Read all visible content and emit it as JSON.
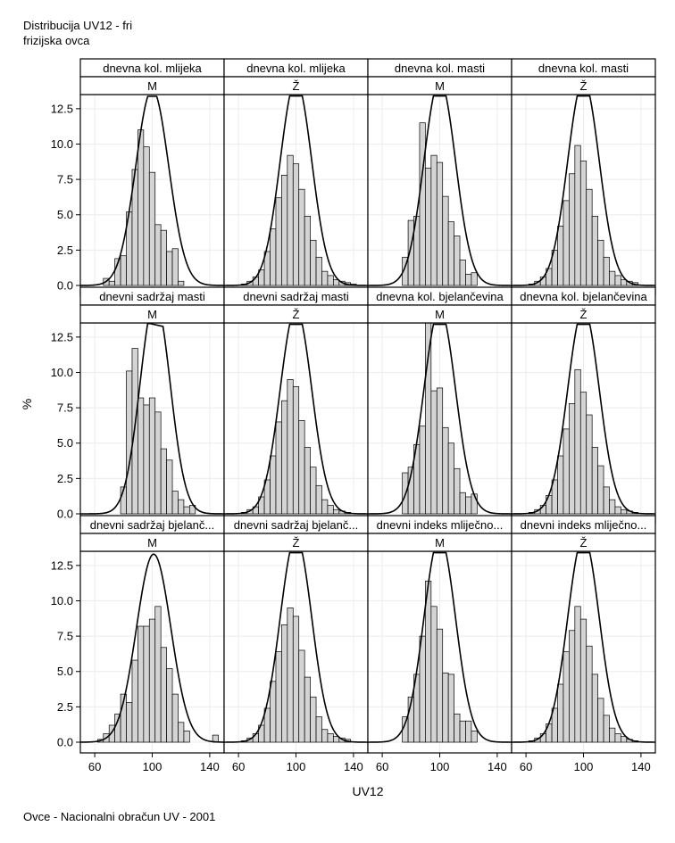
{
  "title": "Distribucija UV12 - fri",
  "subtitle": "frizijska ovca",
  "footer": "Ovce - Nacionalni obračun UV - 2001",
  "chart_data": {
    "type": "bar",
    "subtype": "histogram with fitted normal density curve, faceted 3x4",
    "xlabel": "UV12",
    "ylabel": "%",
    "xlim": [
      50,
      150
    ],
    "ylim": [
      0,
      13.5
    ],
    "xticks": [
      60,
      100,
      140
    ],
    "yticks": [
      0.0,
      2.5,
      5.0,
      7.5,
      10.0,
      12.5
    ],
    "ytick_labels": [
      "0.0",
      "2.5",
      "5.0",
      "7.5",
      "10.0",
      "12.5"
    ],
    "grid": true,
    "bar_fill": "#d4d4d4",
    "bar_edge": "#000000",
    "bin_width": 4,
    "panels": [
      {
        "trait": "dnevna kol. mlijeka",
        "sex": "M",
        "curve": {
          "mean": 100,
          "sd": 11.5
        },
        "bins": [
          {
            "x": 68,
            "y": 0.5
          },
          {
            "x": 72,
            "y": 0.3
          },
          {
            "x": 76,
            "y": 1.9
          },
          {
            "x": 80,
            "y": 2.1
          },
          {
            "x": 84,
            "y": 5.2
          },
          {
            "x": 88,
            "y": 8.2
          },
          {
            "x": 92,
            "y": 11.0
          },
          {
            "x": 96,
            "y": 9.8
          },
          {
            "x": 100,
            "y": 8.0
          },
          {
            "x": 104,
            "y": 4.3
          },
          {
            "x": 108,
            "y": 3.9
          },
          {
            "x": 112,
            "y": 2.4
          },
          {
            "x": 116,
            "y": 2.6
          },
          {
            "x": 120,
            "y": 0.3
          }
        ]
      },
      {
        "trait": "dnevna kol. mlijeka",
        "sex": "Ž",
        "curve": {
          "mean": 100,
          "sd": 11
        },
        "bins": [
          {
            "x": 64,
            "y": 0.1
          },
          {
            "x": 68,
            "y": 0.3
          },
          {
            "x": 72,
            "y": 0.6
          },
          {
            "x": 76,
            "y": 1.1
          },
          {
            "x": 80,
            "y": 2.4
          },
          {
            "x": 84,
            "y": 4.0
          },
          {
            "x": 88,
            "y": 6.2
          },
          {
            "x": 92,
            "y": 7.8
          },
          {
            "x": 96,
            "y": 9.2
          },
          {
            "x": 100,
            "y": 8.6
          },
          {
            "x": 104,
            "y": 6.8
          },
          {
            "x": 108,
            "y": 4.9
          },
          {
            "x": 112,
            "y": 3.2
          },
          {
            "x": 116,
            "y": 2.0
          },
          {
            "x": 120,
            "y": 1.0
          },
          {
            "x": 124,
            "y": 0.7
          },
          {
            "x": 128,
            "y": 0.4
          },
          {
            "x": 132,
            "y": 0.3
          },
          {
            "x": 136,
            "y": 0.2
          },
          {
            "x": 140,
            "y": 0.1
          }
        ]
      },
      {
        "trait": "dnevna kol. masti",
        "sex": "M",
        "curve": {
          "mean": 100,
          "sd": 11
        },
        "bins": [
          {
            "x": 76,
            "y": 2.0
          },
          {
            "x": 80,
            "y": 4.6
          },
          {
            "x": 84,
            "y": 4.9
          },
          {
            "x": 88,
            "y": 11.5
          },
          {
            "x": 92,
            "y": 8.3
          },
          {
            "x": 96,
            "y": 9.2
          },
          {
            "x": 100,
            "y": 8.7
          },
          {
            "x": 104,
            "y": 6.3
          },
          {
            "x": 108,
            "y": 4.5
          },
          {
            "x": 112,
            "y": 3.5
          },
          {
            "x": 116,
            "y": 1.8
          },
          {
            "x": 120,
            "y": 0.8
          },
          {
            "x": 124,
            "y": 0.9
          }
        ]
      },
      {
        "trait": "dnevna kol. masti",
        "sex": "Ž",
        "curve": {
          "mean": 100,
          "sd": 11
        },
        "bins": [
          {
            "x": 64,
            "y": 0.1
          },
          {
            "x": 68,
            "y": 0.3
          },
          {
            "x": 72,
            "y": 0.6
          },
          {
            "x": 76,
            "y": 1.2
          },
          {
            "x": 80,
            "y": 2.5
          },
          {
            "x": 84,
            "y": 4.2
          },
          {
            "x": 88,
            "y": 6.0
          },
          {
            "x": 92,
            "y": 7.9
          },
          {
            "x": 96,
            "y": 9.9
          },
          {
            "x": 100,
            "y": 8.8
          },
          {
            "x": 104,
            "y": 6.8
          },
          {
            "x": 108,
            "y": 4.9
          },
          {
            "x": 112,
            "y": 3.2
          },
          {
            "x": 116,
            "y": 2.0
          },
          {
            "x": 120,
            "y": 1.0
          },
          {
            "x": 124,
            "y": 0.7
          },
          {
            "x": 128,
            "y": 0.4
          },
          {
            "x": 132,
            "y": 0.3
          },
          {
            "x": 136,
            "y": 0.2
          }
        ]
      },
      {
        "trait": "dnevni sadržaj masti",
        "sex": "M",
        "curve": {
          "mean": 102,
          "sd": 10.5
        },
        "bins": [
          {
            "x": 80,
            "y": 1.9
          },
          {
            "x": 84,
            "y": 10.1
          },
          {
            "x": 88,
            "y": 11.7
          },
          {
            "x": 92,
            "y": 8.2
          },
          {
            "x": 96,
            "y": 7.7
          },
          {
            "x": 100,
            "y": 8.2
          },
          {
            "x": 104,
            "y": 7.2
          },
          {
            "x": 108,
            "y": 4.6
          },
          {
            "x": 112,
            "y": 3.8
          },
          {
            "x": 116,
            "y": 1.6
          },
          {
            "x": 120,
            "y": 1.0
          },
          {
            "x": 124,
            "y": 0.5
          },
          {
            "x": 128,
            "y": 0.6
          }
        ]
      },
      {
        "trait": "dnevni sadržaj masti",
        "sex": "Ž",
        "curve": {
          "mean": 100,
          "sd": 11
        },
        "bins": [
          {
            "x": 64,
            "y": 0.1
          },
          {
            "x": 68,
            "y": 0.3
          },
          {
            "x": 72,
            "y": 0.5
          },
          {
            "x": 76,
            "y": 1.2
          },
          {
            "x": 80,
            "y": 2.4
          },
          {
            "x": 84,
            "y": 4.1
          },
          {
            "x": 88,
            "y": 6.5
          },
          {
            "x": 92,
            "y": 8.0
          },
          {
            "x": 96,
            "y": 9.5
          },
          {
            "x": 100,
            "y": 9.0
          },
          {
            "x": 104,
            "y": 6.6
          },
          {
            "x": 108,
            "y": 4.7
          },
          {
            "x": 112,
            "y": 3.3
          },
          {
            "x": 116,
            "y": 2.0
          },
          {
            "x": 120,
            "y": 1.0
          },
          {
            "x": 124,
            "y": 0.6
          },
          {
            "x": 128,
            "y": 0.3
          },
          {
            "x": 132,
            "y": 0.2
          },
          {
            "x": 136,
            "y": 0.1
          }
        ]
      },
      {
        "trait": "dnevna kol. bjelančevina",
        "sex": "M",
        "curve": {
          "mean": 100,
          "sd": 11
        },
        "bins": [
          {
            "x": 76,
            "y": 2.9
          },
          {
            "x": 80,
            "y": 3.3
          },
          {
            "x": 84,
            "y": 4.9
          },
          {
            "x": 88,
            "y": 6.2
          },
          {
            "x": 92,
            "y": 13.5
          },
          {
            "x": 96,
            "y": 8.7
          },
          {
            "x": 100,
            "y": 8.9
          },
          {
            "x": 104,
            "y": 6.1
          },
          {
            "x": 108,
            "y": 5.0
          },
          {
            "x": 112,
            "y": 3.2
          },
          {
            "x": 116,
            "y": 1.5
          },
          {
            "x": 120,
            "y": 1.2
          },
          {
            "x": 124,
            "y": 1.4
          }
        ]
      },
      {
        "trait": "dnevna kol. bjelančevina",
        "sex": "Ž",
        "curve": {
          "mean": 100,
          "sd": 11
        },
        "bins": [
          {
            "x": 64,
            "y": 0.1
          },
          {
            "x": 68,
            "y": 0.3
          },
          {
            "x": 72,
            "y": 0.6
          },
          {
            "x": 76,
            "y": 1.3
          },
          {
            "x": 80,
            "y": 2.4
          },
          {
            "x": 84,
            "y": 4.1
          },
          {
            "x": 88,
            "y": 6.0
          },
          {
            "x": 92,
            "y": 7.8
          },
          {
            "x": 96,
            "y": 10.2
          },
          {
            "x": 100,
            "y": 8.6
          },
          {
            "x": 104,
            "y": 7.0
          },
          {
            "x": 108,
            "y": 4.7
          },
          {
            "x": 112,
            "y": 3.4
          },
          {
            "x": 116,
            "y": 1.9
          },
          {
            "x": 120,
            "y": 1.0
          },
          {
            "x": 124,
            "y": 0.5
          },
          {
            "x": 128,
            "y": 0.3
          },
          {
            "x": 132,
            "y": 0.2
          },
          {
            "x": 136,
            "y": 0.1
          }
        ]
      },
      {
        "trait": "dnevni sadržaj bjelančevina",
        "sex": "M",
        "curve": {
          "mean": 101,
          "sd": 12
        },
        "bins": [
          {
            "x": 64,
            "y": 0.2
          },
          {
            "x": 68,
            "y": 0.6
          },
          {
            "x": 72,
            "y": 1.2
          },
          {
            "x": 76,
            "y": 2.0
          },
          {
            "x": 80,
            "y": 3.4
          },
          {
            "x": 84,
            "y": 2.8
          },
          {
            "x": 88,
            "y": 5.8
          },
          {
            "x": 92,
            "y": 8.2
          },
          {
            "x": 96,
            "y": 8.2
          },
          {
            "x": 100,
            "y": 8.7
          },
          {
            "x": 104,
            "y": 9.6
          },
          {
            "x": 108,
            "y": 6.7
          },
          {
            "x": 112,
            "y": 5.2
          },
          {
            "x": 116,
            "y": 3.4
          },
          {
            "x": 120,
            "y": 1.4
          },
          {
            "x": 124,
            "y": 0.8
          },
          {
            "x": 144,
            "y": 0.5
          }
        ]
      },
      {
        "trait": "dnevni sadržaj bjelančevina",
        "sex": "Ž",
        "curve": {
          "mean": 100,
          "sd": 11
        },
        "bins": [
          {
            "x": 64,
            "y": 0.1
          },
          {
            "x": 68,
            "y": 0.3
          },
          {
            "x": 72,
            "y": 0.6
          },
          {
            "x": 76,
            "y": 1.2
          },
          {
            "x": 80,
            "y": 2.4
          },
          {
            "x": 84,
            "y": 4.3
          },
          {
            "x": 88,
            "y": 6.4
          },
          {
            "x": 92,
            "y": 8.3
          },
          {
            "x": 96,
            "y": 9.5
          },
          {
            "x": 100,
            "y": 8.9
          },
          {
            "x": 104,
            "y": 6.5
          },
          {
            "x": 108,
            "y": 4.6
          },
          {
            "x": 112,
            "y": 3.2
          },
          {
            "x": 116,
            "y": 1.8
          },
          {
            "x": 120,
            "y": 0.9
          },
          {
            "x": 124,
            "y": 0.6
          },
          {
            "x": 128,
            "y": 0.4
          },
          {
            "x": 132,
            "y": 0.3
          },
          {
            "x": 136,
            "y": 0.2
          }
        ]
      },
      {
        "trait": "dnevni indeks mliječnosti",
        "sex": "M",
        "curve": {
          "mean": 100,
          "sd": 11
        },
        "bins": [
          {
            "x": 76,
            "y": 1.8
          },
          {
            "x": 80,
            "y": 3.2
          },
          {
            "x": 84,
            "y": 4.8
          },
          {
            "x": 88,
            "y": 7.5
          },
          {
            "x": 92,
            "y": 11.4
          },
          {
            "x": 96,
            "y": 9.6
          },
          {
            "x": 100,
            "y": 8.0
          },
          {
            "x": 104,
            "y": 4.9
          },
          {
            "x": 108,
            "y": 4.8
          },
          {
            "x": 112,
            "y": 2.0
          },
          {
            "x": 116,
            "y": 1.5
          },
          {
            "x": 120,
            "y": 1.5
          },
          {
            "x": 124,
            "y": 0.8
          }
        ]
      },
      {
        "trait": "dnevni indeks mliječnosti",
        "sex": "Ž",
        "curve": {
          "mean": 100,
          "sd": 11
        },
        "bins": [
          {
            "x": 64,
            "y": 0.1
          },
          {
            "x": 68,
            "y": 0.3
          },
          {
            "x": 72,
            "y": 0.6
          },
          {
            "x": 76,
            "y": 1.3
          },
          {
            "x": 80,
            "y": 2.4
          },
          {
            "x": 84,
            "y": 4.1
          },
          {
            "x": 88,
            "y": 6.4
          },
          {
            "x": 92,
            "y": 7.9
          },
          {
            "x": 96,
            "y": 9.6
          },
          {
            "x": 100,
            "y": 8.7
          },
          {
            "x": 104,
            "y": 6.8
          },
          {
            "x": 108,
            "y": 4.8
          },
          {
            "x": 112,
            "y": 3.1
          },
          {
            "x": 116,
            "y": 1.9
          },
          {
            "x": 120,
            "y": 1.0
          },
          {
            "x": 124,
            "y": 0.6
          },
          {
            "x": 128,
            "y": 0.4
          },
          {
            "x": 132,
            "y": 0.2
          },
          {
            "x": 136,
            "y": 0.1
          }
        ]
      }
    ],
    "strip_labels": [
      [
        "dnevna kol. mlijeka",
        "dnevna kol. mlijeka",
        "dnevna kol. masti",
        "dnevna kol. masti"
      ],
      [
        "dnevni sadržaj masti",
        "dnevni sadržaj masti",
        "dnevna kol. bjelančevina",
        "dnevna kol. bjelančevina"
      ],
      [
        "dnevni sadržaj bjelanč...",
        "dnevni sadržaj bjelanč...",
        "dnevni indeks mliječno...",
        "dnevni indeks mliječno..."
      ]
    ],
    "sex_labels": [
      "M",
      "Ž",
      "M",
      "Ž"
    ]
  }
}
